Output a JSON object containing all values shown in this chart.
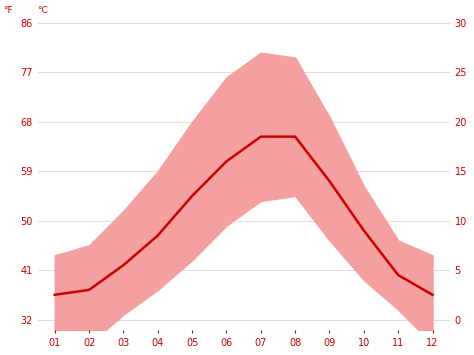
{
  "months": [
    1,
    2,
    3,
    4,
    5,
    6,
    7,
    8,
    9,
    10,
    11,
    12
  ],
  "month_labels": [
    "01",
    "02",
    "03",
    "04",
    "05",
    "06",
    "07",
    "08",
    "09",
    "10",
    "11",
    "12"
  ],
  "avg_temp_c": [
    2.5,
    3.0,
    5.5,
    8.5,
    12.5,
    16.0,
    18.5,
    18.5,
    14.0,
    9.0,
    4.5,
    2.5
  ],
  "max_temp_c": [
    6.5,
    7.5,
    11.0,
    15.0,
    20.0,
    24.5,
    27.0,
    26.5,
    20.5,
    13.5,
    8.0,
    6.5
  ],
  "min_temp_c": [
    -2.5,
    -2.5,
    0.5,
    3.0,
    6.0,
    9.5,
    12.0,
    12.5,
    8.0,
    4.0,
    1.0,
    -2.5
  ],
  "ylim_c": [
    -1.1,
    30.0
  ],
  "yticks_f": [
    32,
    41,
    50,
    59,
    68,
    77,
    86
  ],
  "line_color": "#cc0000",
  "band_color": "#f5a0a0",
  "background_color": "#ffffff",
  "grid_color": "#dddddd",
  "tick_label_color": "#cc0000",
  "tick_fontsize": 7,
  "linewidth": 1.8
}
